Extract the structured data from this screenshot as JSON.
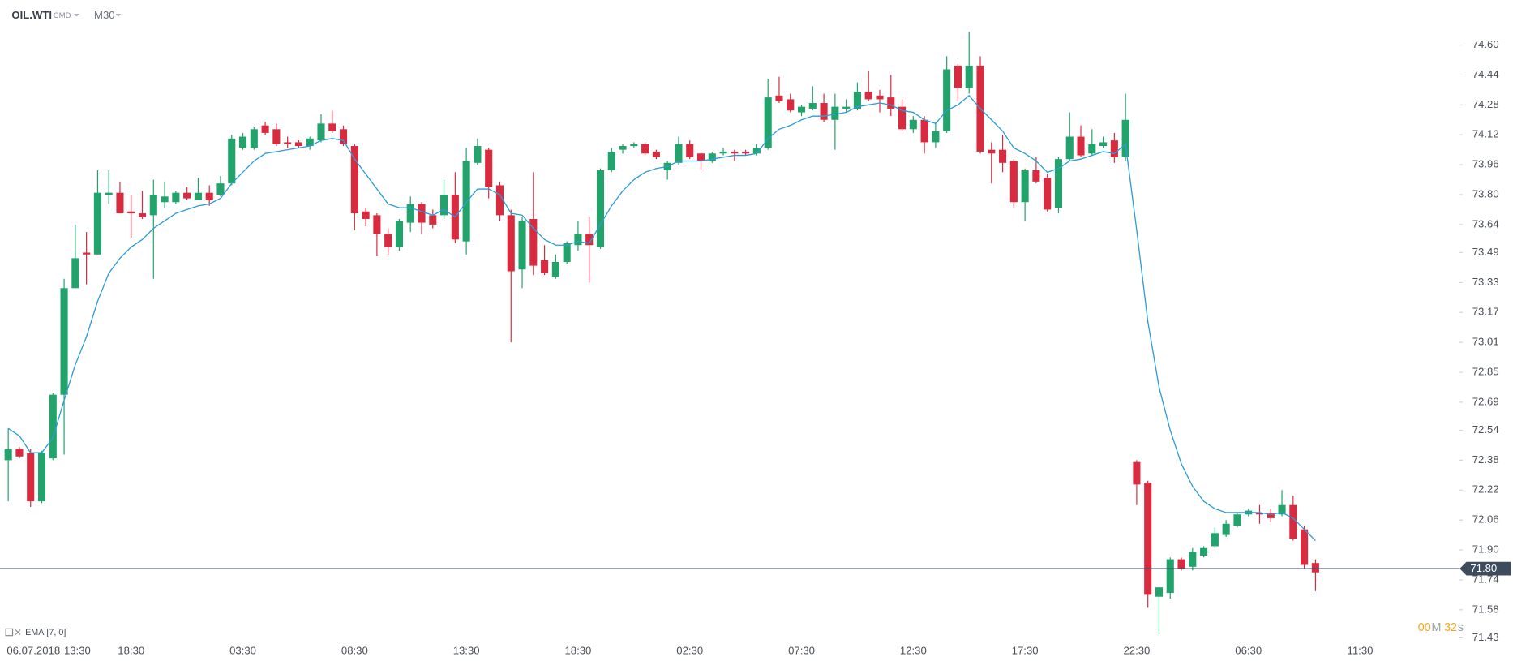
{
  "chart_data": {
    "type": "candlestick",
    "symbol": "OIL.WTI",
    "market": "CMD",
    "timeframe": "M30",
    "start_date": "06.07.2018",
    "up_color": "#22a36b",
    "down_color": "#d92b40",
    "categories": [
      null,
      "13:30",
      null,
      null,
      null,
      null,
      null,
      null,
      null,
      null,
      null,
      "18:30",
      null,
      null,
      null,
      null,
      null,
      null,
      null,
      null,
      null,
      "03:30",
      null,
      null,
      null,
      null,
      null,
      null,
      null,
      null,
      null,
      "08:30",
      null,
      null,
      null,
      null,
      null,
      null,
      null,
      null,
      null,
      "13:30",
      null,
      null,
      null,
      null,
      null,
      null,
      null,
      null,
      null,
      "18:30",
      null,
      null,
      null,
      null,
      null,
      null,
      null,
      null,
      null,
      "02:30",
      null,
      null,
      null,
      null,
      null,
      null,
      null,
      null,
      null,
      "07:30",
      null,
      null,
      null,
      null,
      null,
      null,
      null,
      null,
      null,
      "12:30",
      null,
      null,
      null,
      null,
      null,
      null,
      null,
      null,
      null,
      "17:30",
      null,
      null,
      null,
      null,
      null,
      null,
      null,
      null,
      null,
      "22:30",
      null,
      null,
      null,
      null,
      null,
      null,
      null,
      null,
      null,
      "06:30",
      null,
      null,
      null,
      null,
      null,
      null,
      null,
      null,
      null,
      "11:30"
    ],
    "open": [
      72.38,
      72.44,
      72.42,
      72.16,
      72.39,
      72.73,
      73.3,
      73.49,
      73.48,
      73.8,
      73.81,
      73.71,
      73.7,
      73.69,
      73.76,
      73.76,
      73.81,
      73.77,
      73.81,
      73.8,
      73.86,
      74.05,
      74.05,
      74.17,
      74.15,
      74.08,
      74.08,
      74.06,
      74.09,
      74.18,
      74.15,
      74.06,
      73.71,
      73.69,
      73.59,
      73.52,
      73.65,
      73.75,
      73.69,
      73.69,
      73.8,
      73.55,
      73.97,
      74.04,
      73.85,
      73.69,
      73.4,
      73.67,
      73.45,
      73.36,
      73.44,
      73.53,
      73.59,
      73.52,
      73.93,
      74.04,
      74.06,
      74.07,
      74.03,
      73.93,
      73.97,
      74.07,
      74.02,
      73.98,
      74.02,
      74.03,
      74.03,
      74.02,
      74.05,
      74.33,
      74.31,
      74.24,
      74.26,
      74.29,
      74.2,
      74.26,
      74.26,
      74.35,
      74.33,
      74.32,
      74.27,
      74.15,
      74.2,
      74.08,
      74.14,
      74.49,
      74.37,
      74.49,
      74.04,
      74.04,
      73.98,
      73.76,
      73.93,
      73.89,
      73.73,
      73.99,
      74.11,
      74.02,
      74.06,
      74.09,
      74.0,
      72.37,
      72.26,
      71.65,
      71.67,
      71.85,
      71.81,
      71.87,
      71.92,
      71.98,
      72.03,
      72.09,
      72.1,
      72.1,
      72.09,
      72.14,
      72.01,
      71.83,
      null,
      null,
      null,
      null
    ],
    "high": [
      72.55,
      72.45,
      72.44,
      72.43,
      72.74,
      73.35,
      73.64,
      73.6,
      73.93,
      73.93,
      73.87,
      73.8,
      73.82,
      73.88,
      73.87,
      73.82,
      73.84,
      73.89,
      73.85,
      73.9,
      74.12,
      74.13,
      74.16,
      74.19,
      74.18,
      74.11,
      74.09,
      74.11,
      74.23,
      74.25,
      74.17,
      74.07,
      73.73,
      73.7,
      73.62,
      73.67,
      73.79,
      73.76,
      73.72,
      73.88,
      73.92,
      74.05,
      74.1,
      74.05,
      73.87,
      73.72,
      73.68,
      73.92,
      73.53,
      73.48,
      73.55,
      73.66,
      73.68,
      73.94,
      74.05,
      74.07,
      74.08,
      74.08,
      74.04,
      73.98,
      74.11,
      74.09,
      74.03,
      74.03,
      74.05,
      74.04,
      74.04,
      74.07,
      74.42,
      74.43,
      74.34,
      74.28,
      74.38,
      74.34,
      74.34,
      74.31,
      74.4,
      74.46,
      74.36,
      74.44,
      74.31,
      74.22,
      74.22,
      74.19,
      74.54,
      74.5,
      74.67,
      74.54,
      74.08,
      74.12,
      73.99,
      73.94,
      74.0,
      73.91,
      74.0,
      74.24,
      74.17,
      74.15,
      74.11,
      74.13,
      74.34,
      72.38,
      72.27,
      71.7,
      71.86,
      71.86,
      71.91,
      71.92,
      72.02,
      72.06,
      72.1,
      72.12,
      72.14,
      72.12,
      72.22,
      72.19,
      72.03,
      71.85,
      null,
      null,
      null,
      null
    ],
    "low": [
      72.16,
      72.39,
      72.13,
      72.15,
      72.38,
      72.41,
      73.3,
      73.32,
      73.48,
      73.75,
      73.7,
      73.57,
      73.67,
      73.35,
      73.73,
      73.75,
      73.77,
      73.77,
      73.74,
      73.79,
      73.85,
      74.04,
      74.04,
      74.12,
      74.06,
      74.05,
      74.05,
      74.04,
      74.08,
      74.13,
      74.06,
      73.61,
      73.63,
      73.47,
      73.48,
      73.5,
      73.6,
      73.59,
      73.62,
      73.67,
      73.54,
      73.48,
      73.96,
      73.78,
      73.66,
      73.01,
      73.3,
      73.37,
      73.37,
      73.35,
      73.43,
      73.5,
      73.33,
      73.51,
      73.92,
      74.02,
      74.05,
      74.01,
      73.99,
      73.88,
      73.96,
      73.99,
      73.93,
      73.97,
      74.01,
      73.98,
      74.01,
      74.01,
      74.04,
      74.29,
      74.24,
      74.22,
      74.25,
      74.19,
      74.04,
      74.24,
      74.25,
      74.3,
      74.24,
      74.22,
      74.14,
      74.13,
      74.02,
      74.05,
      74.13,
      74.3,
      74.34,
      74.02,
      73.86,
      73.92,
      73.73,
      73.66,
      73.86,
      73.71,
      73.7,
      73.98,
      74.0,
      74.01,
      74.05,
      73.97,
      73.98,
      72.14,
      71.59,
      71.45,
      71.64,
      71.79,
      71.79,
      71.86,
      71.91,
      71.97,
      72.02,
      72.08,
      72.04,
      72.05,
      72.08,
      71.95,
      71.8,
      71.68,
      null,
      null,
      null,
      null
    ],
    "close": [
      72.44,
      72.4,
      72.16,
      72.42,
      72.73,
      73.3,
      73.46,
      73.48,
      73.81,
      73.81,
      73.7,
      73.7,
      73.68,
      73.8,
      73.79,
      73.81,
      73.78,
      73.81,
      73.77,
      73.86,
      74.1,
      74.11,
      74.15,
      74.13,
      74.07,
      74.07,
      74.06,
      74.1,
      74.18,
      74.14,
      74.07,
      73.7,
      73.67,
      73.59,
      73.52,
      73.66,
      73.75,
      73.65,
      73.64,
      73.8,
      73.56,
      73.98,
      74.06,
      73.84,
      73.69,
      73.39,
      73.66,
      73.42,
      73.38,
      73.44,
      73.54,
      73.59,
      73.53,
      73.93,
      74.03,
      74.06,
      74.07,
      74.02,
      74.0,
      73.97,
      74.07,
      74.0,
      73.98,
      74.02,
      74.03,
      74.02,
      74.02,
      74.05,
      74.32,
      74.3,
      74.25,
      74.27,
      74.29,
      74.2,
      74.27,
      74.27,
      74.35,
      74.31,
      74.31,
      74.26,
      74.15,
      74.2,
      74.08,
      74.14,
      74.47,
      74.37,
      74.49,
      74.03,
      74.02,
      73.97,
      73.76,
      73.93,
      73.87,
      73.72,
      73.99,
      74.11,
      74.01,
      74.07,
      74.08,
      74.0,
      74.2,
      72.25,
      71.66,
      71.7,
      71.85,
      71.8,
      71.89,
      71.91,
      71.99,
      72.04,
      72.09,
      72.11,
      72.09,
      72.07,
      72.14,
      71.96,
      71.82,
      71.78,
      null,
      null,
      null,
      null
    ],
    "ema": {
      "name": "EMA",
      "params": "[7, 0]",
      "color": "#2d9cd6",
      "values": [
        72.55,
        72.51,
        72.42,
        72.42,
        72.5,
        72.7,
        72.89,
        73.04,
        73.23,
        73.38,
        73.46,
        73.52,
        73.56,
        73.62,
        73.66,
        73.7,
        73.72,
        73.74,
        73.75,
        73.78,
        73.86,
        73.92,
        73.98,
        74.02,
        74.03,
        74.04,
        74.05,
        74.06,
        74.09,
        74.1,
        74.09,
        73.99,
        73.91,
        73.83,
        73.75,
        73.73,
        73.73,
        73.71,
        73.69,
        73.72,
        73.68,
        73.76,
        73.83,
        73.83,
        73.8,
        73.7,
        73.69,
        73.62,
        73.56,
        73.53,
        73.53,
        73.55,
        73.54,
        73.64,
        73.74,
        73.82,
        73.88,
        73.92,
        73.94,
        73.95,
        73.98,
        73.98,
        73.98,
        73.99,
        74.0,
        74.01,
        74.01,
        74.02,
        74.1,
        74.15,
        74.17,
        74.2,
        74.22,
        74.22,
        74.23,
        74.24,
        74.27,
        74.28,
        74.29,
        74.28,
        74.25,
        74.24,
        74.2,
        74.18,
        74.25,
        74.28,
        74.33,
        74.26,
        74.2,
        74.14,
        74.05,
        74.02,
        73.98,
        73.92,
        73.94,
        73.98,
        73.99,
        74.01,
        74.03,
        74.02,
        74.07,
        73.61,
        73.12,
        72.77,
        72.54,
        72.36,
        72.24,
        72.16,
        72.12,
        72.1,
        72.1,
        72.1,
        72.1,
        72.09,
        72.1,
        72.07,
        72.01,
        71.95,
        null,
        null,
        null,
        null
      ]
    },
    "last_price": {
      "value": 71.8,
      "label": "71.80",
      "color": "#3d4b5c"
    },
    "ylim": [
      71.39,
      74.84
    ],
    "yticks": [
      {
        "value": 74.6,
        "label": "74.60"
      },
      74.44,
      74.28,
      74.12,
      73.96,
      {
        "value": 73.8,
        "label": "73.80"
      },
      73.64,
      73.49,
      73.33,
      73.17,
      73.01,
      72.85,
      72.69,
      72.54,
      72.38,
      72.22,
      72.06,
      {
        "value": 71.9,
        "label": "71.90"
      },
      71.74,
      71.58,
      71.43
    ],
    "grid": false,
    "countdown": {
      "minutes": "00",
      "minutes_unit": "M",
      "seconds": "32",
      "seconds_unit": "s"
    }
  }
}
